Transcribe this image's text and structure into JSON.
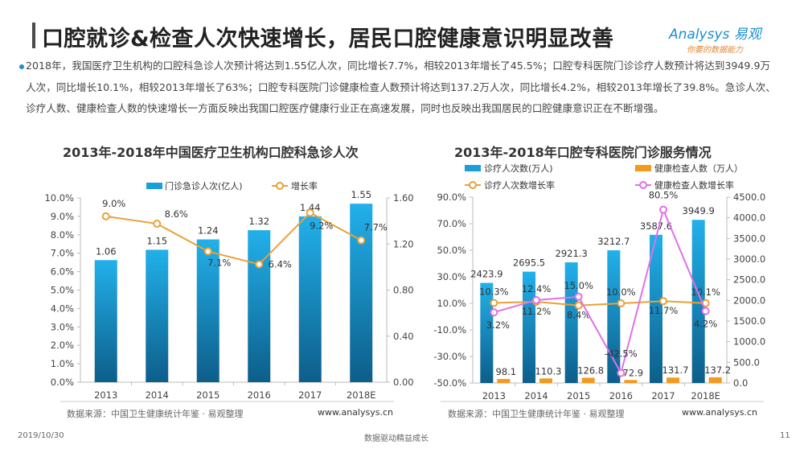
{
  "header": {
    "title": "口腔就诊&检查人次快速增长，居民口腔健康意识明显改善",
    "logo_brand": "Analysys 易观",
    "logo_slogan": "你要的数据能力"
  },
  "summary": "2018年，我国医疗卫生机构的口腔科急诊人次预计将达到1.55亿人次，同比增长7.7%，相较2013年增长了45.5%；口腔专科医院门诊诊疗人数预计将达到3949.9万人次，同比增长10.1%，相较2013年增长了63%；口腔专科医院门诊健康检查人数预计将达到137.2万人次，同比增长4.2%，相较2013年增长了39.8%。急诊人次、诊疗人数、健康检查人数的快速增长一方面反映出我国口腔医疗健康行业正在高速发展，同时也反映出我国居民的口腔健康意识正在不断增强。",
  "colors": {
    "bar": "#1a9fd8",
    "bar_dark": "#0e5f8c",
    "orange": "#f39a1e",
    "line": "#e8a13a",
    "pink": "#e070e8"
  },
  "chart_data": [
    {
      "type": "bar+line",
      "title": "2013年-2018年中国医疗卫生机构口腔科急诊人次",
      "categories": [
        "2013",
        "2014",
        "2015",
        "2016",
        "2017",
        "2018E"
      ],
      "series": [
        {
          "name": "门诊急诊人次(亿人)",
          "type": "bar",
          "axis": "right",
          "values": [
            1.06,
            1.15,
            1.24,
            1.32,
            1.44,
            1.55
          ],
          "labels": [
            "1.06",
            "1.15",
            "1.24",
            "1.32",
            "1.44",
            "1.55"
          ]
        },
        {
          "name": "增长率",
          "type": "line",
          "axis": "left",
          "values": [
            9.0,
            8.6,
            7.1,
            6.4,
            9.2,
            7.7
          ],
          "labels": [
            "9.0%",
            "8.6%",
            "7.1%",
            "6.4%",
            "9.2%",
            "7.7%"
          ]
        }
      ],
      "yleft": {
        "range": [
          0,
          10
        ],
        "ticks": [
          "0.0%",
          "1.0%",
          "2.0%",
          "3.0%",
          "4.0%",
          "5.0%",
          "6.0%",
          "7.0%",
          "8.0%",
          "9.0%",
          "10.0%"
        ]
      },
      "yright": {
        "range": [
          0,
          1.6
        ],
        "ticks": [
          "0.00",
          "0.40",
          "0.80",
          "1.20",
          "1.60"
        ]
      },
      "legend": "top",
      "source": "数据来源：中国卫生健康统计年鉴 · 易观整理",
      "site": "www.analysys.cn"
    },
    {
      "type": "bar+line",
      "title": "2013年-2018年口腔专科医院门诊服务情况",
      "categories": [
        "2013",
        "2014",
        "2015",
        "2016",
        "2017",
        "2018E"
      ],
      "series": [
        {
          "name": "诊疗人次数(万人)",
          "type": "bar",
          "axis": "right",
          "values": [
            2423.9,
            2695.5,
            2921.3,
            3212.7,
            3587.6,
            3949.9
          ],
          "labels": [
            "2423.9",
            "2695.5",
            "2921.3",
            "3212.7",
            "3587.6",
            "3949.9"
          ]
        },
        {
          "name": "健康检查人数（万人）",
          "type": "bar",
          "axis": "right",
          "values": [
            98.1,
            110.3,
            126.8,
            72.9,
            131.7,
            137.2
          ],
          "labels": [
            "98.1",
            "110.3",
            "126.8",
            "72.9",
            "131.7",
            "137.2"
          ]
        },
        {
          "name": "诊疗人次数增长率",
          "type": "line",
          "axis": "left",
          "values": [
            10.3,
            11.2,
            8.4,
            10.0,
            11.7,
            10.1
          ],
          "labels": [
            "10.3%",
            "11.2%",
            "8.4%",
            "10.0%",
            "11.7%",
            "10.1%"
          ]
        },
        {
          "name": "健康检查人数增长率",
          "type": "line",
          "axis": "left",
          "values": [
            3.2,
            12.4,
            15.0,
            -42.5,
            80.5,
            4.2
          ],
          "labels": [
            "3.2%",
            "12.4%",
            "15.0%",
            "-42.5%",
            "80.5%",
            "4.2%"
          ]
        }
      ],
      "yleft": {
        "range": [
          -50,
          90
        ],
        "ticks": [
          "-50.0%",
          "-30.0%",
          "-10.0%",
          "10.0%",
          "30.0%",
          "50.0%",
          "70.0%",
          "90.0%"
        ]
      },
      "yright": {
        "range": [
          0,
          4500
        ],
        "ticks": [
          "0.0",
          "500.0",
          "1000.0",
          "1500.0",
          "2000.0",
          "2500.0",
          "3000.0",
          "3500.0",
          "4000.0",
          "4500.0"
        ]
      },
      "legend": "top",
      "source": "数据来源：中国卫生健康统计年鉴 · 易观整理",
      "site": "www.analysys.cn"
    }
  ],
  "footer": {
    "date": "2019/10/30",
    "slogan": "数据驱动精益成长",
    "page": "11"
  }
}
